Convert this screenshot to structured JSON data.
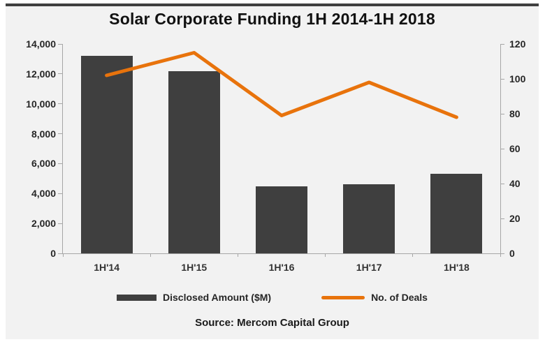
{
  "chart_data": {
    "type": "bar+line combo",
    "title": "Solar Corporate Funding 1H 2014-1H 2018",
    "categories": [
      "1H'14",
      "1H'15",
      "1H'16",
      "1H'17",
      "1H'18"
    ],
    "series": [
      {
        "name": "Disclosed Amount ($M)",
        "type": "bar",
        "axis": "left",
        "color": "#3f3f3f",
        "values": [
          13200,
          12200,
          4500,
          4600,
          5300
        ]
      },
      {
        "name": "No. of Deals",
        "type": "line",
        "axis": "right",
        "color": "#e8730c",
        "values": [
          102,
          115,
          79,
          98,
          78
        ]
      }
    ],
    "left_axis": {
      "min": 0,
      "max": 14000,
      "step": 2000,
      "tick_labels": [
        "0",
        "2,000",
        "4,000",
        "6,000",
        "8,000",
        "10,000",
        "12,000",
        "14,000"
      ]
    },
    "right_axis": {
      "min": 0,
      "max": 120,
      "step": 20,
      "tick_labels": [
        "0",
        "20",
        "40",
        "60",
        "80",
        "100",
        "120"
      ]
    },
    "gridlines": false,
    "legend_position": "bottom",
    "source": "Source: Mercom Capital Group",
    "colors": {
      "panel_background": "#f2f2f2",
      "top_rule": "#404040",
      "axis": "#a6a6a6",
      "text": "#262626"
    }
  }
}
